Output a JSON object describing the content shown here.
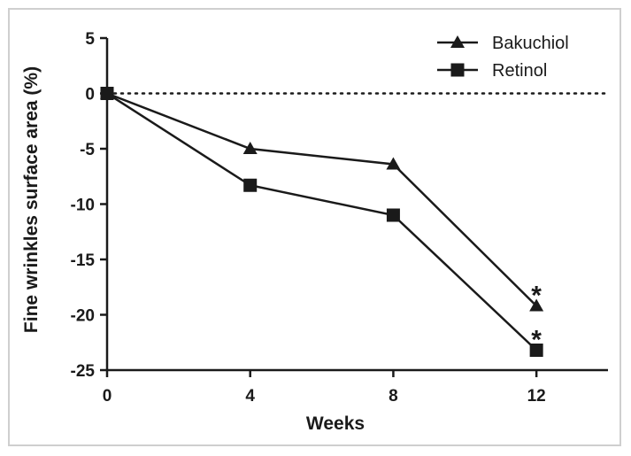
{
  "chart_data": {
    "type": "line",
    "xlabel": "Weeks",
    "ylabel": "Fine wrinkles surface area (%)",
    "x_ticks": [
      0,
      4,
      8,
      12
    ],
    "y_ticks": [
      5,
      0,
      -5,
      -10,
      -15,
      -20,
      -25
    ],
    "xlim": [
      0,
      14
    ],
    "ylim": [
      -25,
      5
    ],
    "reference_line": {
      "y": 0,
      "style": "dotted"
    },
    "legend_position": "top-right",
    "series": [
      {
        "name": "Bakuchiol",
        "marker": "triangle",
        "x": [
          0,
          4,
          8,
          12
        ],
        "y": [
          0,
          -5.0,
          -6.4,
          -19.2
        ]
      },
      {
        "name": "Retinol",
        "marker": "square",
        "x": [
          0,
          4,
          8,
          12
        ],
        "y": [
          0,
          -8.3,
          -11.0,
          -23.2
        ]
      }
    ],
    "annotations": [
      {
        "text": "*",
        "x": 12,
        "series": "Bakuchiol"
      },
      {
        "text": "*",
        "x": 12,
        "series": "Retinol"
      }
    ],
    "colors": {
      "line": "#1a1a1a",
      "frame": "#cfcfcf"
    }
  }
}
